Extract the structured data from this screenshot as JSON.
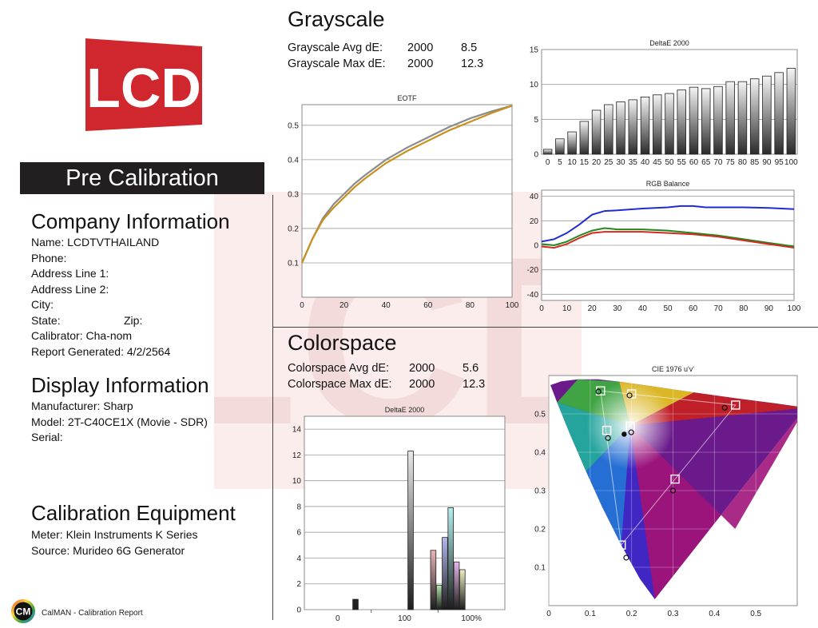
{
  "report": {
    "logo_text": "LCD",
    "banner": "Pre Calibration",
    "footer": "CalMAN - Calibration Report",
    "footer_logo_text": "CM"
  },
  "company": {
    "heading": "Company Information",
    "lines": [
      "Name: LCDTVTHAILAND",
      "Phone:",
      "Address Line 1:",
      "Address Line 2:",
      "City:",
      "State:",
      "Calibrator: Cha-nom",
      "Report Generated: 4/2/2564"
    ],
    "zip_label": "Zip:"
  },
  "display": {
    "heading": "Display Information",
    "lines": [
      "Manufacturer: Sharp",
      "Model: 2T-C40CE1X (Movie - SDR)",
      "Serial:"
    ]
  },
  "equipment": {
    "heading": "Calibration Equipment",
    "lines": [
      "Meter: Klein Instruments K Series",
      "Source: Murideo 6G Generator"
    ]
  },
  "grayscale": {
    "title": "Grayscale",
    "avg_label": "Grayscale Avg dE:",
    "avg_std": "2000",
    "avg_val": "8.5",
    "max_label": "Grayscale Max dE:",
    "max_std": "2000",
    "max_val": "12.3"
  },
  "colorspace": {
    "title": "Colorspace",
    "avg_label": "Colorspace Avg dE:",
    "avg_std": "2000",
    "avg_val": "5.6",
    "max_label": "Colorspace Max dE:",
    "max_std": "2000",
    "max_val": "12.3"
  },
  "chart_data": [
    {
      "id": "gs_de",
      "type": "bar",
      "title": "DeltaE 2000",
      "categories": [
        "0",
        "5",
        "10",
        "15",
        "20",
        "25",
        "30",
        "35",
        "40",
        "45",
        "50",
        "55",
        "60",
        "65",
        "70",
        "75",
        "80",
        "85",
        "90",
        "95",
        "100"
      ],
      "values": [
        0.7,
        2.2,
        3.2,
        4.7,
        6.3,
        7.1,
        7.5,
        7.8,
        8.2,
        8.5,
        8.7,
        9.2,
        9.6,
        9.4,
        9.7,
        10.4,
        10.4,
        10.8,
        11.2,
        11.7,
        12.3
      ],
      "ylim": [
        0,
        15
      ],
      "yticks": [
        0,
        5,
        10,
        15
      ],
      "grid": true
    },
    {
      "id": "eotf",
      "type": "line",
      "title": "EOTF",
      "xlim": [
        0,
        100
      ],
      "ylim": [
        0,
        0.56
      ],
      "xticks": [
        0,
        20,
        40,
        60,
        80,
        100
      ],
      "yticks": [
        "0.1",
        "0.2",
        "0.3",
        "0.4",
        "0.5"
      ],
      "grid": true,
      "series": [
        {
          "color": "#8c8c8c",
          "x": [
            0,
            5,
            10,
            15,
            20,
            25,
            30,
            40,
            50,
            60,
            70,
            80,
            90,
            100
          ],
          "y": [
            0.1,
            0.17,
            0.23,
            0.27,
            0.3,
            0.33,
            0.355,
            0.4,
            0.435,
            0.465,
            0.495,
            0.52,
            0.54,
            0.557
          ]
        },
        {
          "color": "#c8901a",
          "x": [
            0,
            5,
            10,
            15,
            20,
            25,
            30,
            40,
            50,
            60,
            70,
            80,
            90,
            100
          ],
          "y": [
            0.1,
            0.17,
            0.225,
            0.26,
            0.29,
            0.32,
            0.345,
            0.39,
            0.425,
            0.455,
            0.485,
            0.51,
            0.535,
            0.557
          ]
        }
      ]
    },
    {
      "id": "rgb",
      "type": "line",
      "title": "RGB Balance",
      "xlim": [
        0,
        100
      ],
      "ylim": [
        -45,
        45
      ],
      "xticks": [
        0,
        10,
        20,
        30,
        40,
        50,
        60,
        70,
        80,
        90,
        100
      ],
      "yticks": [
        -40,
        -20,
        0,
        20,
        40
      ],
      "grid": true,
      "series": [
        {
          "color": "#1f2bd6",
          "x": [
            0,
            5,
            10,
            15,
            20,
            25,
            30,
            40,
            50,
            55,
            60,
            65,
            70,
            80,
            90,
            100
          ],
          "y": [
            3,
            5,
            10,
            17,
            25,
            28,
            28.5,
            30,
            31,
            32,
            32,
            31,
            31,
            31,
            30.5,
            29.5
          ]
        },
        {
          "color": "#1f8a1f",
          "x": [
            0,
            5,
            10,
            15,
            20,
            25,
            30,
            40,
            50,
            60,
            70,
            80,
            90,
            100
          ],
          "y": [
            1,
            0,
            3,
            8,
            12,
            14,
            13,
            13,
            12,
            10,
            8,
            5,
            2,
            -1
          ]
        },
        {
          "color": "#d42a1f",
          "x": [
            0,
            5,
            10,
            15,
            20,
            25,
            30,
            40,
            50,
            60,
            70,
            80,
            90,
            100
          ],
          "y": [
            -1,
            -2,
            1,
            6,
            10,
            11,
            11,
            11,
            10,
            9,
            7,
            4,
            1,
            -2
          ]
        }
      ]
    },
    {
      "id": "cs_de",
      "type": "bar",
      "title": "DeltaE 2000",
      "categories": [
        "0",
        "100",
        "100%"
      ],
      "ylim": [
        0,
        15
      ],
      "yticks": [
        0,
        2,
        4,
        6,
        8,
        10,
        12,
        14
      ],
      "grid": true,
      "bars": [
        {
          "pos": 0.255,
          "value": 0.8,
          "color": "#222222"
        },
        {
          "pos": 0.53,
          "value": 12.3,
          "color": "#e8e8e8"
        },
        {
          "pos": 0.643,
          "value": 4.6,
          "color": "#e8b4b8"
        },
        {
          "pos": 0.672,
          "value": 1.9,
          "color": "#b8e8b0"
        },
        {
          "pos": 0.701,
          "value": 5.6,
          "color": "#b4b8ec"
        },
        {
          "pos": 0.73,
          "value": 7.9,
          "color": "#b4f0f0"
        },
        {
          "pos": 0.759,
          "value": 3.7,
          "color": "#e8b8ec"
        },
        {
          "pos": 0.788,
          "value": 3.1,
          "color": "#f0f0c0"
        }
      ]
    },
    {
      "id": "cie",
      "type": "scatter",
      "title": "CIE 1976 u'v'",
      "xlim": [
        0,
        0.6
      ],
      "ylim": [
        0,
        0.6
      ],
      "xticks": [
        "0",
        "0.1",
        "0.2",
        "0.3",
        "0.4",
        "0.5"
      ],
      "yticks": [
        "0.1",
        "0.2",
        "0.3",
        "0.4",
        "0.5"
      ],
      "grid": true,
      "targets": [
        {
          "u": 0.125,
          "v": 0.56
        },
        {
          "u": 0.2,
          "v": 0.552
        },
        {
          "u": 0.451,
          "v": 0.523
        },
        {
          "u": 0.197,
          "v": 0.468
        },
        {
          "u": 0.14,
          "v": 0.457
        },
        {
          "u": 0.305,
          "v": 0.33
        },
        {
          "u": 0.175,
          "v": 0.158
        }
      ],
      "measured": [
        {
          "u": 0.12,
          "v": 0.558
        },
        {
          "u": 0.195,
          "v": 0.548
        },
        {
          "u": 0.425,
          "v": 0.516
        },
        {
          "u": 0.199,
          "v": 0.452
        },
        {
          "u": 0.143,
          "v": 0.437
        },
        {
          "u": 0.3,
          "v": 0.3
        },
        {
          "u": 0.187,
          "v": 0.125
        }
      ],
      "white_point": {
        "u": 0.182,
        "v": 0.447
      }
    }
  ]
}
